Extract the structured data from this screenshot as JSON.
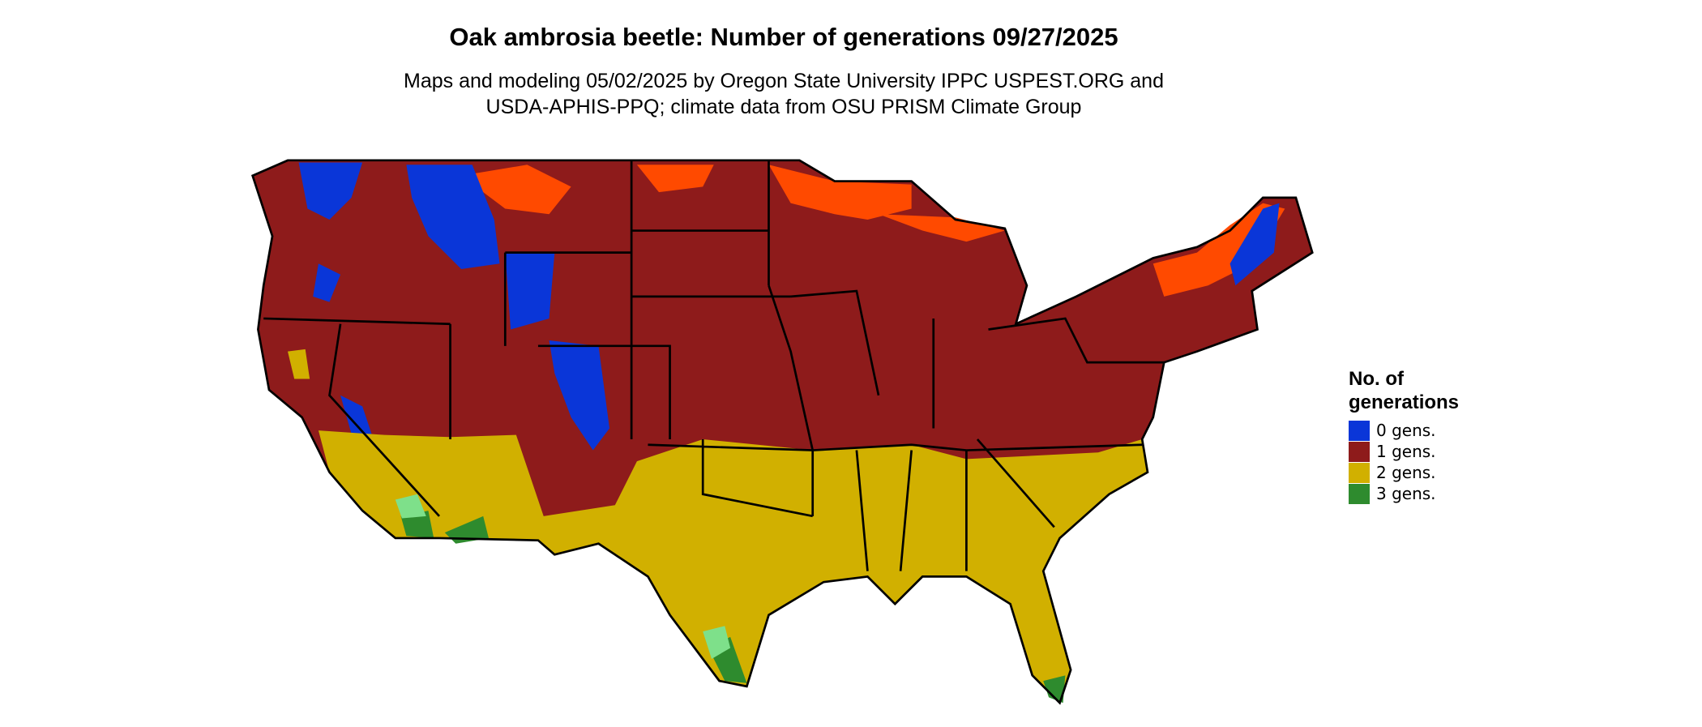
{
  "header": {
    "title": "Oak ambrosia beetle: Number of generations 09/27/2025",
    "subtitle_lines": [
      "Maps and modeling 05/02/2025 by Oregon State University IPPC USPEST.ORG and",
      "USDA-APHIS-PPQ; climate data from OSU PRISM Climate Group"
    ]
  },
  "legend": {
    "title_lines": [
      "No. of",
      "generations"
    ],
    "items": [
      {
        "label": "0 gens.",
        "color": "#0a36d8"
      },
      {
        "label": "1 gens.",
        "color": "#8e1b1b"
      },
      {
        "label": "2 gens.",
        "color": "#d1b000"
      },
      {
        "label": "3 gens.",
        "color": "#2e8b2e"
      }
    ]
  }
}
